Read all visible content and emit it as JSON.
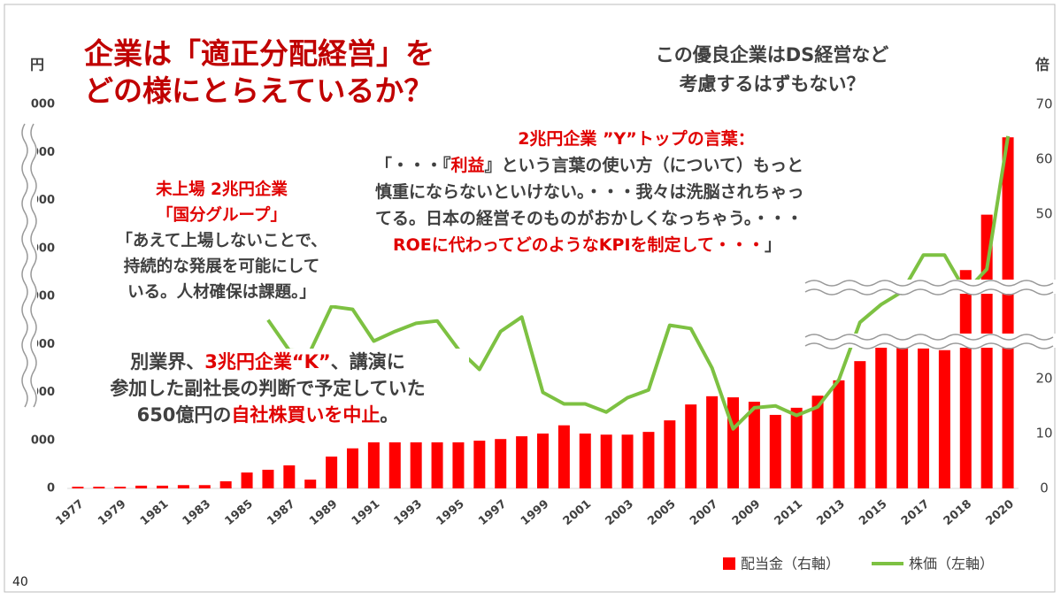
{
  "page_number": "40",
  "title": {
    "lines": [
      "企業は「適正分配経営」を",
      "どの様にとらえているか？"
    ],
    "color": "#c00000"
  },
  "note": {
    "lines": [
      "この優良企業はDS経営など",
      "考慮するはずもない？"
    ],
    "color": "#404040"
  },
  "boxes": [
    {
      "lines": [
        [
          {
            "text": "2兆円企業 ”Y”トップの言葉：",
            "color": "#e00000"
          }
        ],
        [
          {
            "text": "「・・・『",
            "color": "#404040"
          },
          {
            "text": "利益",
            "color": "#e00000"
          },
          {
            "text": "』という言葉の使い方（について）もっと",
            "color": "#404040"
          }
        ],
        [
          {
            "text": "慎重にならないといけない。・・・我々は洗脳されちゃっ",
            "color": "#404040"
          }
        ],
        [
          {
            "text": "てる。日本の経営そのものがおかしくなっちゃう。・・・",
            "color": "#404040"
          }
        ],
        [
          {
            "text": "ROEに代わってどのようなKPIを制定して・・・",
            "color": "#e00000"
          },
          {
            "text": "」",
            "color": "#404040"
          }
        ]
      ]
    },
    {
      "lines": [
        [
          {
            "text": "未上場 2兆円企業",
            "color": "#e00000"
          }
        ],
        [
          {
            "text": "「国分グループ」",
            "color": "#e00000"
          }
        ],
        [
          {
            "text": "「あえて上場しないことで、",
            "color": "#404040"
          }
        ],
        [
          {
            "text": "持続的な発展を可能にして",
            "color": "#404040"
          }
        ],
        [
          {
            "text": "いる。人材確保は課題。」",
            "color": "#404040"
          }
        ]
      ]
    },
    {
      "lines": [
        [
          {
            "text": "別業界、",
            "color": "#404040"
          },
          {
            "text": "3兆円企業“K”",
            "color": "#e00000"
          },
          {
            "text": "、講演に",
            "color": "#404040"
          }
        ],
        [
          {
            "text": "参加した副社長の判断で予定していた",
            "color": "#404040"
          }
        ],
        [
          {
            "text": "650億円の",
            "color": "#404040"
          },
          {
            "text": "自社株買いを中止",
            "color": "#e00000"
          },
          {
            "text": "。",
            "color": "#404040"
          }
        ]
      ]
    }
  ],
  "chart_data": {
    "type": "bar_line",
    "ylabel": "円",
    "y2label": "倍",
    "categories": [
      "1977",
      null,
      "1979",
      null,
      "1981",
      null,
      "1983",
      null,
      "1985",
      null,
      "1987",
      null,
      "1989",
      null,
      "1991",
      null,
      "1993",
      null,
      "1995",
      null,
      "1997",
      null,
      "1999",
      null,
      "2001",
      null,
      "2003",
      null,
      "2005",
      null,
      "2007",
      null,
      "2009",
      null,
      "2011",
      null,
      "2013",
      null,
      "2015",
      null,
      "2017",
      null,
      "2018",
      null,
      "2020"
    ],
    "ylim": [
      0,
      8000
    ],
    "yticks": [
      0,
      {
        "value": 1000,
        "label": "000"
      },
      {
        "value": 2000,
        "label": "000"
      },
      {
        "value": 3000,
        "label": "000"
      },
      {
        "value": 4000,
        "label": "000"
      },
      {
        "value": 5000,
        "label": "000"
      },
      {
        "value": 6000,
        "label": "000"
      },
      {
        "value": 7000,
        "label": "000"
      },
      {
        "value": 8000,
        "label": "000"
      }
    ],
    "y2lim": [
      0,
      70
    ],
    "y2ticks": [
      0,
      10,
      20,
      50,
      60,
      70
    ],
    "series": [
      {
        "name": "配当金（右軸）",
        "color": "#ff0000",
        "axis": "y2",
        "kind": "bar",
        "values": [
          0.3,
          0.3,
          0.3,
          0.5,
          0.5,
          0.6,
          0.6,
          1.3,
          2.9,
          3.4,
          4.2,
          1.6,
          5.8,
          7.3,
          8.4,
          8.4,
          8.4,
          8.4,
          8.4,
          8.7,
          9.0,
          9.5,
          10.0,
          11.5,
          10.0,
          9.8,
          9.8,
          10.3,
          12.4,
          15.3,
          16.8,
          16.6,
          15.8,
          13.4,
          14.7,
          16.9,
          19.7,
          23.2,
          26.1,
          25.8,
          25.5,
          25.2,
          39.8,
          49.9,
          64.0
        ]
      },
      {
        "name": "株価（左軸）",
        "color": "#7dc142",
        "axis": "y",
        "kind": "line",
        "values": [
          null,
          null,
          null,
          null,
          null,
          null,
          null,
          null,
          null,
          3510,
          2880,
          2860,
          3790,
          3730,
          3070,
          3270,
          3440,
          3490,
          2900,
          2480,
          3270,
          3570,
          2000,
          1760,
          1760,
          1590,
          1890,
          2050,
          3400,
          3330,
          2510,
          1240,
          1680,
          1720,
          1520,
          1700,
          2260,
          3460,
          3830,
          4100,
          4860,
          4860,
          4100,
          4570,
          7340
        ]
      }
    ]
  }
}
